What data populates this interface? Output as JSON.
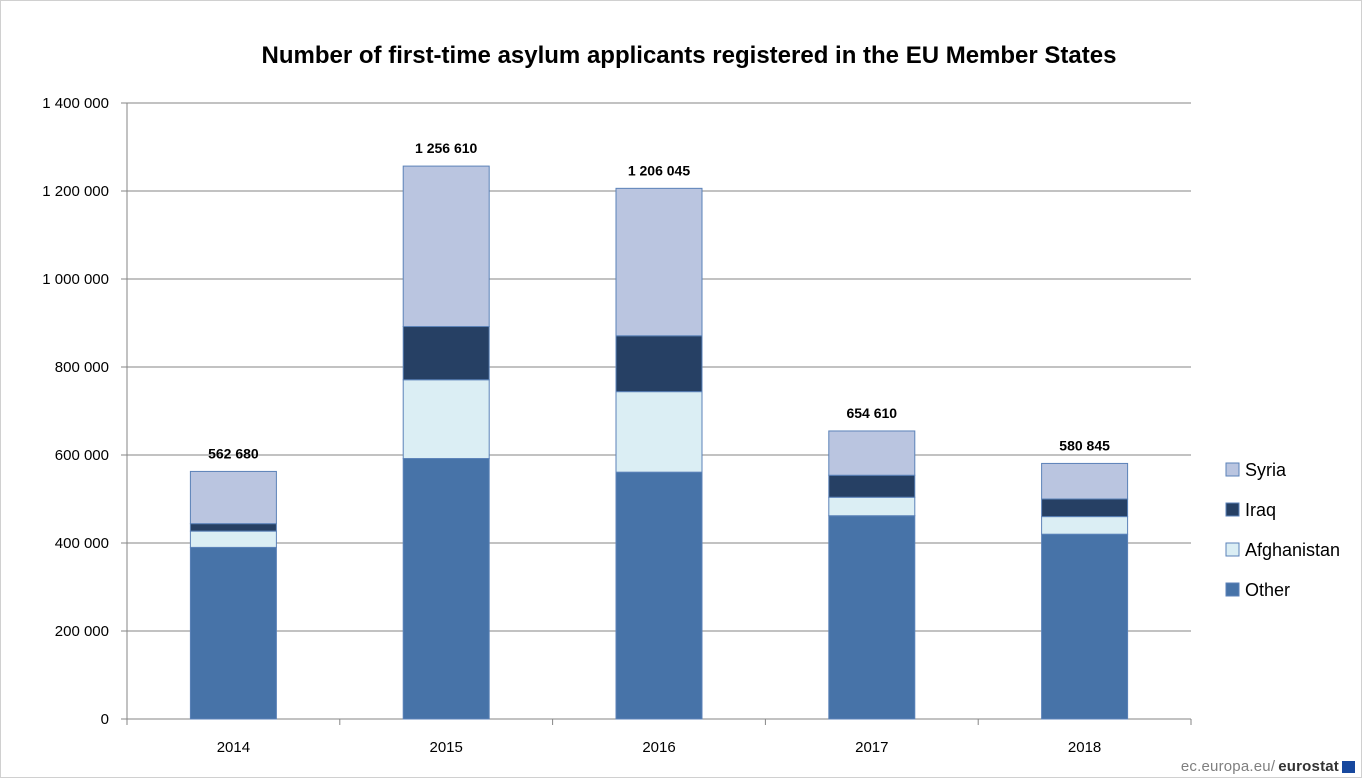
{
  "chart_data": {
    "type": "bar",
    "stacked": true,
    "title": "Number of first-time asylum applicants registered in the EU Member States",
    "categories": [
      "2014",
      "2015",
      "2016",
      "2017",
      "2018"
    ],
    "series": [
      {
        "name": "Other",
        "color": "#4773a8",
        "values": [
          390000,
          592000,
          561000,
          462000,
          420000
        ]
      },
      {
        "name": "Afghanistan",
        "color": "#dbeef4",
        "values": [
          37000,
          179000,
          183000,
          42000,
          40000
        ]
      },
      {
        "name": "Iraq",
        "color": "#264064",
        "values": [
          17000,
          121000,
          127000,
          50000,
          40000
        ]
      },
      {
        "name": "Syria",
        "color": "#bac5e0",
        "values": [
          118680,
          364610,
          335045,
          100610,
          80845
        ]
      }
    ],
    "totals": [
      "562 680",
      "1 256 610",
      "1 206 045",
      "654 610",
      "580 845"
    ],
    "ylim": [
      0,
      1400000
    ],
    "yticks": [
      0,
      200000,
      400000,
      600000,
      800000,
      1000000,
      1200000,
      1400000
    ],
    "ytick_labels": [
      "0",
      "200 000",
      "400 000",
      "600 000",
      "800 000",
      "1 000 000",
      "1 200 000",
      "1 400 000"
    ],
    "legend": {
      "position": "right",
      "order": [
        "Syria",
        "Iraq",
        "Afghanistan",
        "Other"
      ]
    },
    "grid": true,
    "xlabel": "",
    "ylabel": ""
  },
  "footer": {
    "domain": "ec.europa.eu/",
    "brand": "eurostat"
  }
}
